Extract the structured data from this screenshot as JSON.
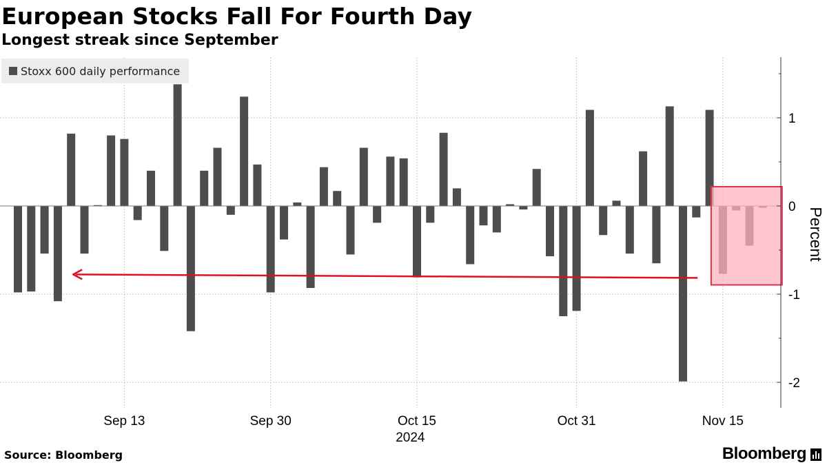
{
  "header": {
    "title": "European Stocks Fall For Fourth Day",
    "subtitle": "Longest streak since September"
  },
  "footer": {
    "source": "Source: Bloomberg",
    "brand": "Bloomberg"
  },
  "colors": {
    "bar": "#4d4d4d",
    "highlight_fill": "#ffb3c0",
    "highlight_stroke": "#e0304e",
    "arrow": "#e01020",
    "grid": "#c8c8c8",
    "legend_bg": "#ececec"
  },
  "chart_data": {
    "type": "bar",
    "legend": [
      "Stoxx 600 daily performance"
    ],
    "legend_position": "top-left",
    "ylabel": "Percent",
    "y_axis_side": "right",
    "ylim": [
      -2.25,
      1.7
    ],
    "yticks": [
      1,
      0,
      -1,
      -2
    ],
    "grid": true,
    "x_ticks": [
      {
        "label": "Sep 13",
        "index": 8
      },
      {
        "label": "Sep 30",
        "index": 19
      },
      {
        "label": "Oct 15",
        "index": 30
      },
      {
        "label": "Oct 31",
        "index": 42
      },
      {
        "label": "Nov 15",
        "index": 53
      }
    ],
    "x_year_label": {
      "label": "2024",
      "index": 29.5
    },
    "series": [
      {
        "name": "Stoxx 600 daily performance",
        "values": [
          -0.98,
          -0.97,
          -0.54,
          -1.08,
          0.82,
          -0.54,
          0.01,
          0.8,
          0.76,
          -0.16,
          0.4,
          -0.51,
          1.38,
          -1.42,
          0.4,
          0.66,
          -0.1,
          1.24,
          0.47,
          -0.98,
          -0.38,
          0.04,
          -0.93,
          0.44,
          0.17,
          -0.55,
          0.66,
          -0.19,
          0.56,
          0.54,
          -0.81,
          -0.19,
          0.83,
          0.2,
          -0.66,
          -0.22,
          -0.3,
          0.02,
          -0.04,
          0.42,
          -0.57,
          -1.25,
          -1.19,
          1.09,
          -0.33,
          0.06,
          -0.54,
          0.62,
          -0.65,
          1.13,
          -1.99,
          -0.13,
          1.09,
          -0.77,
          -0.05,
          -0.45,
          -0.02
        ]
      }
    ],
    "highlight": {
      "from_index": 53,
      "to_index": 56
    },
    "arrow": {
      "from_index": 51,
      "to_index": 4,
      "value": -0.8
    }
  }
}
